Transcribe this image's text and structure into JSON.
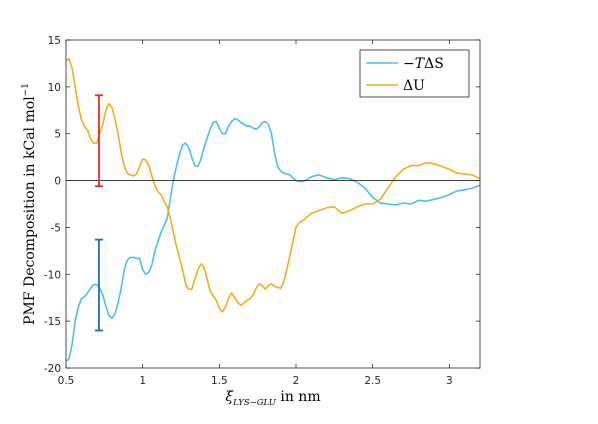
{
  "chart_data": {
    "type": "line",
    "title": "",
    "xlabel": {
      "main": "ξ",
      "sub": "LYS−GLU",
      "suffix": " in nm"
    },
    "ylabel": {
      "main": "PMF Decomposition in kCal mol",
      "sup": "−1"
    },
    "xlim": [
      0.5,
      3.2
    ],
    "ylim": [
      -20,
      15
    ],
    "xticks": [
      0.5,
      1,
      1.5,
      2,
      2.5,
      3
    ],
    "xtick_labels": [
      "0.5",
      "1",
      "1.5",
      "2",
      "2.5",
      "3"
    ],
    "yticks": [
      15,
      10,
      5,
      0,
      -5,
      -10,
      -15,
      -20
    ],
    "ytick_labels": [
      "15",
      "10",
      "5",
      "0",
      "-5",
      "-10",
      "-15",
      "-20"
    ],
    "zero_line": true,
    "grid": false,
    "legend": {
      "position": "top-right",
      "entries": [
        {
          "prefix": "−",
          "italic": "T",
          "rest": "ΔS",
          "color": "#4DBEEE"
        },
        {
          "prefix": "",
          "italic": "",
          "rest": "ΔU",
          "color": "#EDB120"
        }
      ]
    },
    "series": [
      {
        "name": "−TΔS",
        "color": "#4DBEEE",
        "x": [
          0.5,
          0.52,
          0.54,
          0.56,
          0.58,
          0.6,
          0.62,
          0.64,
          0.66,
          0.68,
          0.7,
          0.72,
          0.74,
          0.76,
          0.78,
          0.8,
          0.82,
          0.84,
          0.86,
          0.88,
          0.9,
          0.92,
          0.94,
          0.96,
          0.98,
          1.0,
          1.02,
          1.04,
          1.06,
          1.08,
          1.1,
          1.12,
          1.14,
          1.16,
          1.18,
          1.2,
          1.22,
          1.24,
          1.26,
          1.28,
          1.3,
          1.32,
          1.34,
          1.36,
          1.38,
          1.4,
          1.42,
          1.44,
          1.46,
          1.48,
          1.5,
          1.52,
          1.54,
          1.56,
          1.58,
          1.6,
          1.62,
          1.64,
          1.66,
          1.68,
          1.7,
          1.72,
          1.74,
          1.76,
          1.78,
          1.8,
          1.82,
          1.84,
          1.86,
          1.88,
          1.9,
          1.92,
          1.94,
          1.96,
          1.98,
          2.0,
          2.02,
          2.05,
          2.1,
          2.15,
          2.2,
          2.25,
          2.3,
          2.35,
          2.4,
          2.45,
          2.5,
          2.55,
          2.6,
          2.65,
          2.7,
          2.75,
          2.8,
          2.85,
          2.9,
          2.95,
          3.0,
          3.05,
          3.1,
          3.15,
          3.2
        ],
        "y": [
          -19.3,
          -19.0,
          -17.5,
          -15.0,
          -13.5,
          -12.6,
          -12.4,
          -12.0,
          -11.5,
          -11.1,
          -11.1,
          -11.5,
          -12.2,
          -13.4,
          -14.4,
          -14.7,
          -14.2,
          -13.0,
          -11.5,
          -9.5,
          -8.5,
          -8.2,
          -8.2,
          -8.3,
          -8.3,
          -9.5,
          -10.0,
          -9.8,
          -9.0,
          -7.5,
          -6.5,
          -5.5,
          -4.8,
          -4.0,
          -2.0,
          0.0,
          1.5,
          2.8,
          3.8,
          4.0,
          3.5,
          2.5,
          1.6,
          1.5,
          2.3,
          3.5,
          4.5,
          5.5,
          6.2,
          6.3,
          5.6,
          5.0,
          5.0,
          5.8,
          6.3,
          6.6,
          6.5,
          6.2,
          6.0,
          5.8,
          5.8,
          5.6,
          5.5,
          5.7,
          6.2,
          6.3,
          6.0,
          5.0,
          3.0,
          1.5,
          1.0,
          0.8,
          0.7,
          0.6,
          0.3,
          0.0,
          -0.1,
          -0.1,
          0.4,
          0.6,
          0.3,
          0.1,
          0.3,
          0.2,
          -0.2,
          -0.8,
          -1.8,
          -2.4,
          -2.5,
          -2.6,
          -2.4,
          -2.5,
          -2.1,
          -2.2,
          -2.0,
          -1.8,
          -1.5,
          -1.1,
          -1.0,
          -0.8,
          -0.5
        ]
      },
      {
        "name": "ΔU",
        "color": "#EDB120",
        "x": [
          0.5,
          0.52,
          0.54,
          0.56,
          0.58,
          0.6,
          0.62,
          0.64,
          0.66,
          0.68,
          0.7,
          0.72,
          0.74,
          0.76,
          0.78,
          0.8,
          0.82,
          0.84,
          0.86,
          0.88,
          0.9,
          0.92,
          0.94,
          0.96,
          0.98,
          1.0,
          1.02,
          1.04,
          1.06,
          1.08,
          1.1,
          1.12,
          1.14,
          1.16,
          1.18,
          1.2,
          1.22,
          1.24,
          1.26,
          1.28,
          1.3,
          1.32,
          1.34,
          1.36,
          1.38,
          1.4,
          1.42,
          1.44,
          1.46,
          1.48,
          1.5,
          1.52,
          1.54,
          1.56,
          1.58,
          1.6,
          1.62,
          1.64,
          1.66,
          1.68,
          1.7,
          1.72,
          1.74,
          1.76,
          1.78,
          1.8,
          1.82,
          1.84,
          1.86,
          1.88,
          1.9,
          1.92,
          1.94,
          1.96,
          1.98,
          2.0,
          2.02,
          2.05,
          2.1,
          2.15,
          2.2,
          2.25,
          2.3,
          2.35,
          2.4,
          2.45,
          2.5,
          2.55,
          2.6,
          2.65,
          2.7,
          2.75,
          2.8,
          2.85,
          2.9,
          2.95,
          3.0,
          3.05,
          3.1,
          3.15,
          3.2
        ],
        "y": [
          12.8,
          13.0,
          12.0,
          10.0,
          8.0,
          6.5,
          5.8,
          5.4,
          4.5,
          4.0,
          4.0,
          5.0,
          6.0,
          7.5,
          8.2,
          7.8,
          6.5,
          5.0,
          3.0,
          1.5,
          0.8,
          0.6,
          0.5,
          0.7,
          1.5,
          2.3,
          2.2,
          1.6,
          0.5,
          -0.5,
          -1.2,
          -1.5,
          -2.2,
          -2.8,
          -4.0,
          -5.5,
          -7.0,
          -8.2,
          -9.5,
          -11.0,
          -11.6,
          -11.6,
          -10.5,
          -9.5,
          -8.9,
          -9.2,
          -10.5,
          -11.8,
          -12.3,
          -12.8,
          -13.6,
          -14.0,
          -13.5,
          -12.6,
          -12.0,
          -12.5,
          -13.0,
          -13.3,
          -13.1,
          -12.8,
          -12.6,
          -12.2,
          -11.5,
          -11.0,
          -11.2,
          -11.6,
          -11.2,
          -11.0,
          -11.3,
          -11.4,
          -11.5,
          -10.8,
          -9.5,
          -8.0,
          -6.5,
          -5.0,
          -4.5,
          -4.2,
          -3.5,
          -3.2,
          -2.9,
          -2.8,
          -3.5,
          -3.2,
          -2.8,
          -2.5,
          -2.5,
          -2.0,
          -0.8,
          0.4,
          1.2,
          1.6,
          1.6,
          1.9,
          1.8,
          1.5,
          1.2,
          0.8,
          0.7,
          0.6,
          0.2
        ]
      }
    ],
    "error_bars": [
      {
        "x": 0.715,
        "low": -0.6,
        "high": 9.1,
        "color": "#E52B2B"
      },
      {
        "x": 0.715,
        "low": -16.0,
        "high": -6.3,
        "color": "#1F6FA8"
      }
    ]
  }
}
